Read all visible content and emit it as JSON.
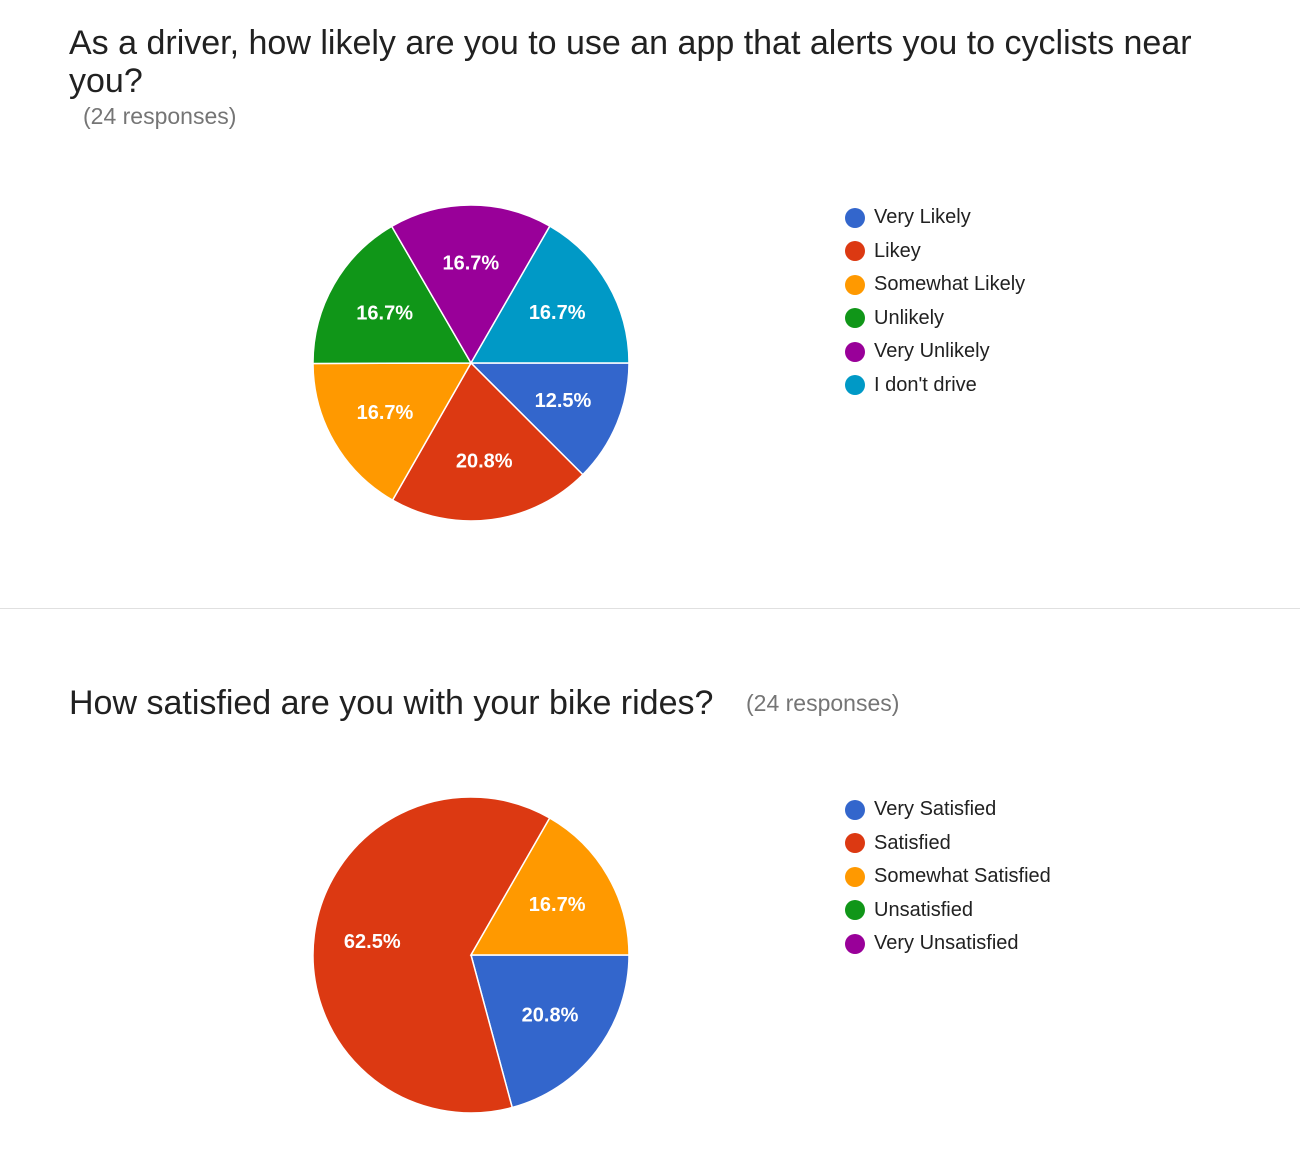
{
  "chart_data": [
    {
      "type": "pie",
      "title": "As a driver, how likely are you to use an app that alerts you to cyclists near you?",
      "subtitle": "(24 responses)",
      "legend_position": "right",
      "slices": [
        {
          "label": "Very Likely",
          "value": 12.5,
          "display": "12.5%",
          "color": "#3366cc"
        },
        {
          "label": "Likey",
          "value": 20.8,
          "display": "20.8%",
          "color": "#dc3912"
        },
        {
          "label": "Somewhat Likely",
          "value": 16.7,
          "display": "16.7%",
          "color": "#ff9900"
        },
        {
          "label": "Unlikely",
          "value": 16.7,
          "display": "16.7%",
          "color": "#109618"
        },
        {
          "label": "Very Unlikely",
          "value": 16.7,
          "display": "16.7%",
          "color": "#990099"
        },
        {
          "label": "I don't drive",
          "value": 16.7,
          "display": "16.7%",
          "color": "#0099c6"
        }
      ]
    },
    {
      "type": "pie",
      "title": "How satisfied are you with your bike rides?",
      "subtitle": "(24 responses)",
      "legend_position": "right",
      "slices": [
        {
          "label": "Very Satisfied",
          "value": 20.8,
          "display": "20.8%",
          "color": "#3366cc"
        },
        {
          "label": "Satisfied",
          "value": 62.5,
          "display": "62.5%",
          "color": "#dc3912"
        },
        {
          "label": "Somewhat Satisfied",
          "value": 16.7,
          "display": "16.7%",
          "color": "#ff9900"
        },
        {
          "label": "Unsatisfied",
          "value": 0,
          "display": "",
          "color": "#109618"
        },
        {
          "label": "Very Unsatisfied",
          "value": 0,
          "display": "",
          "color": "#990099"
        }
      ]
    }
  ]
}
